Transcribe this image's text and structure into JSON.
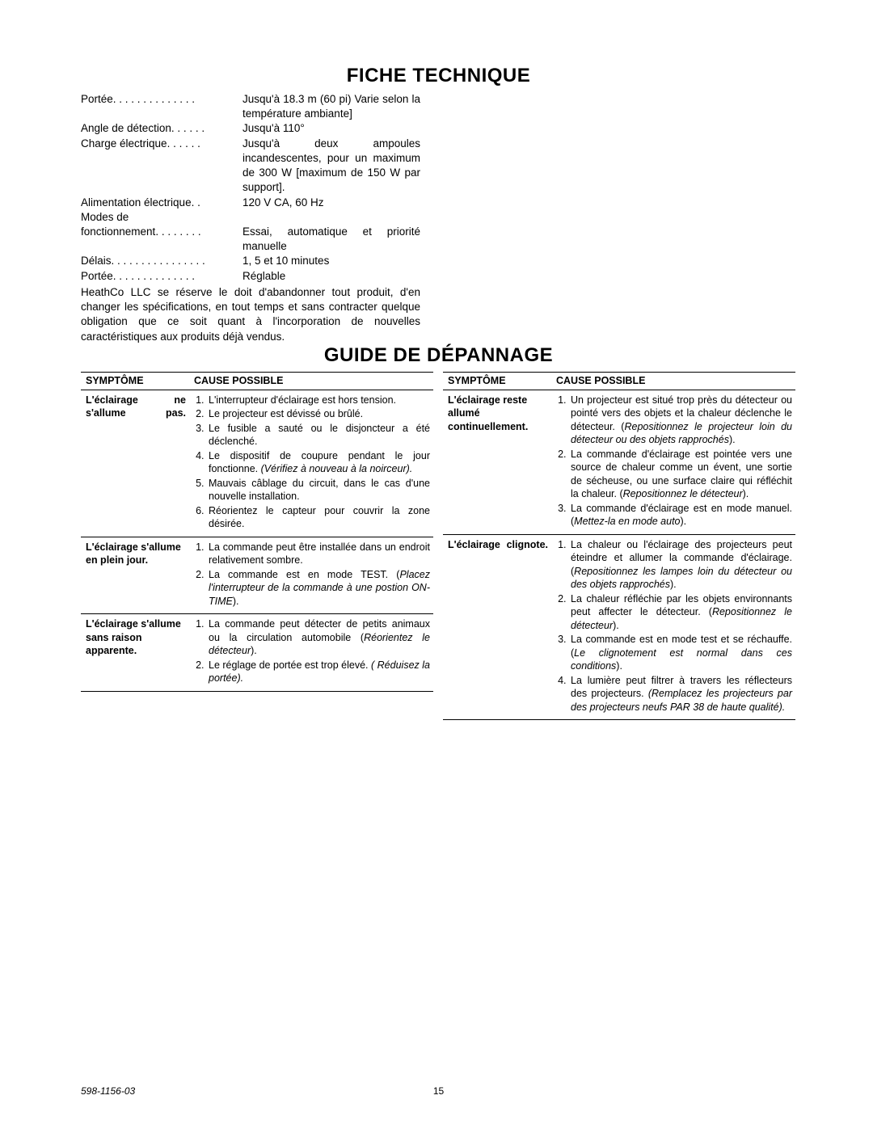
{
  "specs_title": "FICHE TECHNIQUE",
  "specs": [
    {
      "label": "Portée",
      "dots": " . . . . . . . . . . . . . . ",
      "value": "Jusqu'à 18.3 m (60 pi) Varie selon la température ambiante]"
    },
    {
      "label": "Angle de détection",
      "dots": ". . . . . . ",
      "value": "Jusqu'à 110°"
    },
    {
      "label": "Charge électrique",
      "dots": " . . . . . . ",
      "value": "Jusqu'à deux ampoules incandescentes, pour un maximum de 300 W [maximum de 150 W par support]."
    },
    {
      "label": "Alimentation électrique",
      "dots": " . . ",
      "value": "120 V CA, 60 Hz"
    },
    {
      "label": "Modes de",
      "dots": "",
      "value": ""
    },
    {
      "label": "fonctionnement",
      "dots": " . . . . . . . . ",
      "value": "Essai, automatique et priorité manuelle"
    },
    {
      "label": "Délais",
      "dots": ". . . . . . . . . . . . . . . . ",
      "value": "1, 5 et 10 minutes"
    },
    {
      "label": "Portée",
      "dots": " . . . . . . . . . . . . . . ",
      "value": "Réglable"
    }
  ],
  "spec_note": "HeathCo LLC se réserve le doit d'abandonner tout produit, d'en changer les spécifications, en tout temps et sans contracter quelque obligation que ce soit quant à l'incorporation de nouvelles caractéristiques aux produits déjà vendus.",
  "guide_title": "GUIDE DE DÉPANNAGE",
  "table_headers": {
    "symptom": "SYMPTÔME",
    "cause": "CAUSE POSSIBLE"
  },
  "left_table": [
    {
      "symptom": "L'éclairage ne s'allume pas.",
      "symptom_justify": true,
      "causes": [
        "L'interrupteur d'éclairage est hors tension.",
        "Le projecteur est dévissé ou brûlé.",
        "Le fusible a sauté ou le disjoncteur a été déclenché.",
        "Le dispositif de coupure pendant le jour fonctionne. <em>(Vérifiez à nouveau à la noirceur).</em>",
        "Mauvais câblage du circuit, dans le cas d'une nouvelle installation.",
        "Réorientez le capteur pour couvrir la zone désirée."
      ]
    },
    {
      "symptom": "L'éclairage s'allume en plein jour.",
      "symptom_justify": false,
      "causes": [
        "La commande peut être installée dans un endroit relativement sombre.",
        "La commande est en mode TEST. (<em>Placez l'interrupteur de la commande à une postion ON-TIME</em>)."
      ]
    },
    {
      "symptom": "L'éclairage s'allume sans raison apparente.",
      "symptom_justify": false,
      "causes": [
        "La commande peut détecter de petits animaux ou la circulation automobile (<em>Réorientez le détecteur</em>).",
        "Le réglage de portée est trop élevé. <em>( Réduisez la portée).</em>"
      ]
    }
  ],
  "right_table": [
    {
      "symptom": "L'éclairage reste allumé continuellement.",
      "symptom_justify": false,
      "causes": [
        "Un projecteur est situé trop près du détecteur ou pointé vers des objets et la chaleur déclenche le détecteur. (<em>Repositionnez le projecteur loin du détecteur ou des objets rapprochés</em>).",
        "La commande d'éclairage est pointée vers une source de chaleur comme un évent, une sortie de sécheuse, ou une surface claire qui réfléchit la chaleur. (<em>Repositionnez le détecteur</em>).",
        "La commande d'éclairage est en mode manuel. (<em>Mettez-la en mode auto</em>)."
      ]
    },
    {
      "symptom": "L'éclairage clignote.",
      "symptom_justify": true,
      "causes": [
        "La chaleur ou l'éclairage des projecteurs peut éteindre et allumer la commande d'éclairage. (<em>Repositionnez les lampes loin du détecteur ou des objets rapprochés</em>).",
        "La chaleur réfléchie par les objets environnants peut affecter le détecteur. (<em>Repositionnez le détecteur</em>).",
        "La commande est en mode test et se réchauffe. (<em>Le clignotement est normal dans ces conditions</em>).",
        "La lumière peut filtrer à travers les réflecteurs des projecteurs. <em>(Remplacez les projecteurs par des projecteurs neufs PAR 38 de haute qualité).</em>"
      ]
    }
  ],
  "footer": {
    "docnum": "598-1156-03",
    "pagenum": "15"
  }
}
